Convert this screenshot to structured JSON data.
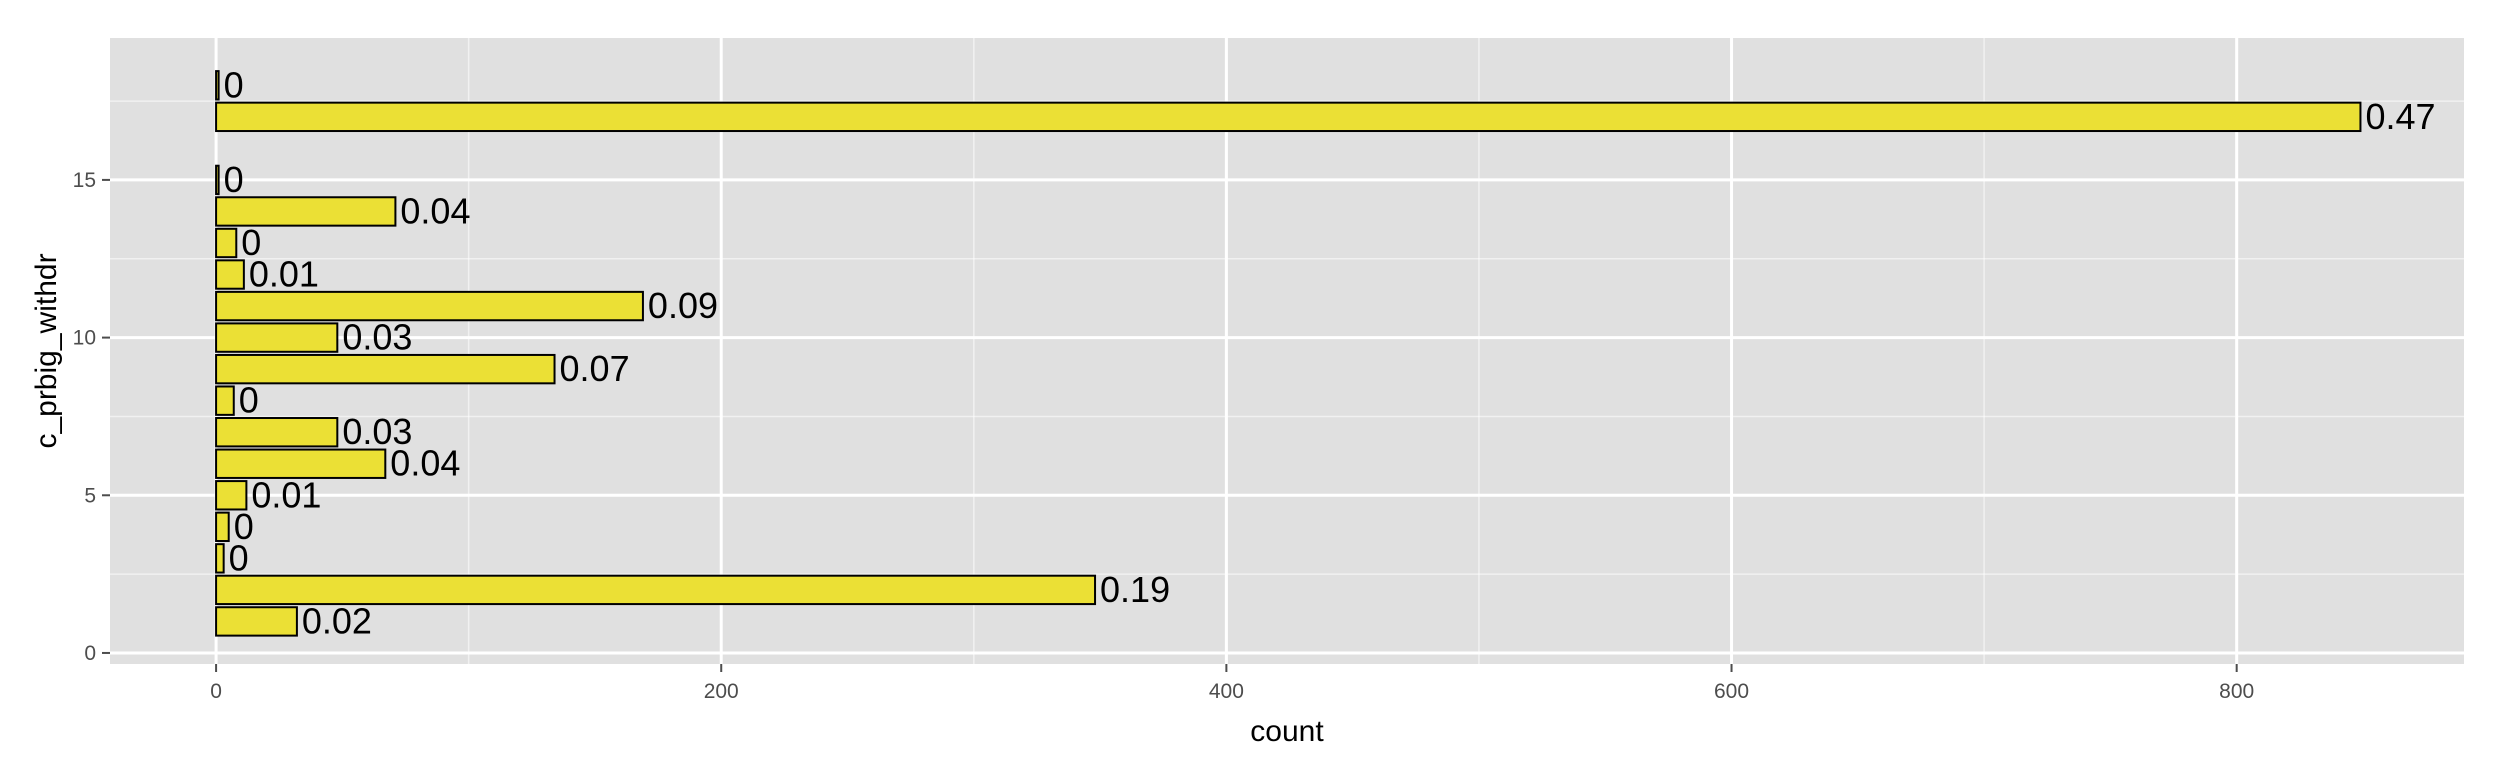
{
  "chart_data": {
    "type": "bar",
    "orientation": "horizontal",
    "title": "",
    "xlabel": "count",
    "ylabel": "c_prbig_withdr",
    "xlim": [
      -42,
      890
    ],
    "ylim": [
      -0.35,
      19.5
    ],
    "x_ticks": [
      0,
      200,
      400,
      600,
      800
    ],
    "x_minor_ticks": [
      100,
      300,
      500,
      700
    ],
    "y_ticks": [
      0,
      5,
      10,
      15
    ],
    "y_minor_ticks": [
      2.5,
      7.5,
      12.5,
      17.5
    ],
    "grid": true,
    "bar_color": "#ebe035",
    "bar_edge_color": "#000000",
    "panel_color": "#e0e0e0",
    "grid_color": "#ffffff",
    "bars": [
      {
        "y": 1,
        "value": 32,
        "label": "0.02"
      },
      {
        "y": 2,
        "value": 348,
        "label": "0.19"
      },
      {
        "y": 3,
        "value": 3,
        "label": "0"
      },
      {
        "y": 4,
        "value": 5,
        "label": "0"
      },
      {
        "y": 5,
        "value": 12,
        "label": "0.01"
      },
      {
        "y": 6,
        "value": 67,
        "label": "0.04"
      },
      {
        "y": 7,
        "value": 48,
        "label": "0.03"
      },
      {
        "y": 8,
        "value": 7,
        "label": "0"
      },
      {
        "y": 9,
        "value": 134,
        "label": "0.07"
      },
      {
        "y": 10,
        "value": 48,
        "label": "0.03"
      },
      {
        "y": 11,
        "value": 169,
        "label": "0.09"
      },
      {
        "y": 12,
        "value": 11,
        "label": "0.01"
      },
      {
        "y": 13,
        "value": 8,
        "label": "0"
      },
      {
        "y": 14,
        "value": 71,
        "label": "0.04"
      },
      {
        "y": 15,
        "value": 1,
        "label": "0"
      },
      {
        "y": 17,
        "value": 849,
        "label": "0.47"
      },
      {
        "y": 18,
        "value": 1,
        "label": "0"
      }
    ]
  }
}
